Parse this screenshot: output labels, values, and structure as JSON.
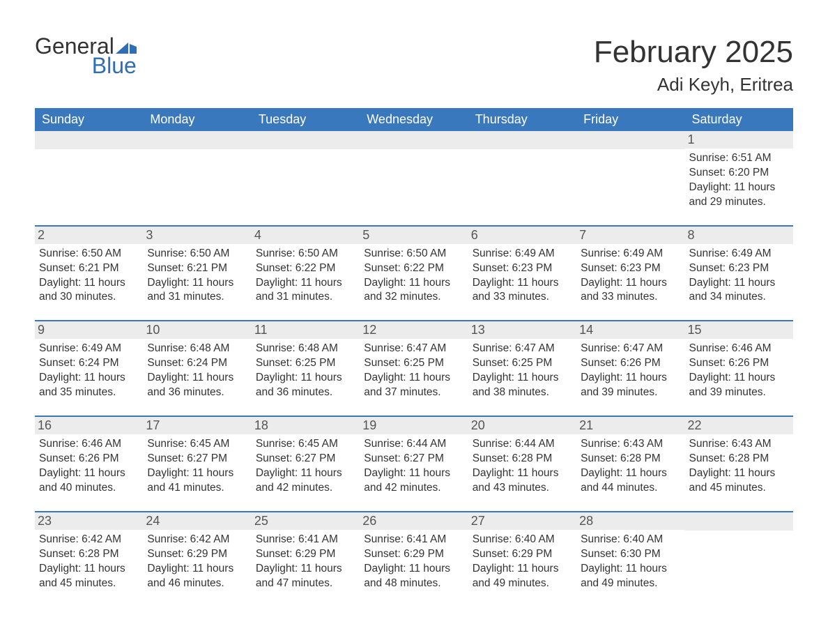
{
  "logo": {
    "text1": "General",
    "text2": "Blue",
    "icon_color": "#2f6eb5"
  },
  "title": "February 2025",
  "location": "Adi Keyh, Eritrea",
  "colors": {
    "header_bg": "#3a78bd",
    "header_text": "#ffffff",
    "daynum_bg": "#ececec",
    "border": "#3a78bd",
    "text": "#333333",
    "logo_accent": "#2f6eb5",
    "background": "#ffffff"
  },
  "typography": {
    "title_fontsize": 44,
    "location_fontsize": 26,
    "header_fontsize": 18,
    "daynum_fontsize": 18,
    "body_fontsize": 15.5
  },
  "day_names": [
    "Sunday",
    "Monday",
    "Tuesday",
    "Wednesday",
    "Thursday",
    "Friday",
    "Saturday"
  ],
  "labels": {
    "sunrise": "Sunrise:",
    "sunset": "Sunset:",
    "daylight": "Daylight:"
  },
  "weeks": [
    [
      null,
      null,
      null,
      null,
      null,
      null,
      {
        "d": 1,
        "sunrise": "6:51 AM",
        "sunset": "6:20 PM",
        "daylight": "11 hours and 29 minutes."
      }
    ],
    [
      {
        "d": 2,
        "sunrise": "6:50 AM",
        "sunset": "6:21 PM",
        "daylight": "11 hours and 30 minutes."
      },
      {
        "d": 3,
        "sunrise": "6:50 AM",
        "sunset": "6:21 PM",
        "daylight": "11 hours and 31 minutes."
      },
      {
        "d": 4,
        "sunrise": "6:50 AM",
        "sunset": "6:22 PM",
        "daylight": "11 hours and 31 minutes."
      },
      {
        "d": 5,
        "sunrise": "6:50 AM",
        "sunset": "6:22 PM",
        "daylight": "11 hours and 32 minutes."
      },
      {
        "d": 6,
        "sunrise": "6:49 AM",
        "sunset": "6:23 PM",
        "daylight": "11 hours and 33 minutes."
      },
      {
        "d": 7,
        "sunrise": "6:49 AM",
        "sunset": "6:23 PM",
        "daylight": "11 hours and 33 minutes."
      },
      {
        "d": 8,
        "sunrise": "6:49 AM",
        "sunset": "6:23 PM",
        "daylight": "11 hours and 34 minutes."
      }
    ],
    [
      {
        "d": 9,
        "sunrise": "6:49 AM",
        "sunset": "6:24 PM",
        "daylight": "11 hours and 35 minutes."
      },
      {
        "d": 10,
        "sunrise": "6:48 AM",
        "sunset": "6:24 PM",
        "daylight": "11 hours and 36 minutes."
      },
      {
        "d": 11,
        "sunrise": "6:48 AM",
        "sunset": "6:25 PM",
        "daylight": "11 hours and 36 minutes."
      },
      {
        "d": 12,
        "sunrise": "6:47 AM",
        "sunset": "6:25 PM",
        "daylight": "11 hours and 37 minutes."
      },
      {
        "d": 13,
        "sunrise": "6:47 AM",
        "sunset": "6:25 PM",
        "daylight": "11 hours and 38 minutes."
      },
      {
        "d": 14,
        "sunrise": "6:47 AM",
        "sunset": "6:26 PM",
        "daylight": "11 hours and 39 minutes."
      },
      {
        "d": 15,
        "sunrise": "6:46 AM",
        "sunset": "6:26 PM",
        "daylight": "11 hours and 39 minutes."
      }
    ],
    [
      {
        "d": 16,
        "sunrise": "6:46 AM",
        "sunset": "6:26 PM",
        "daylight": "11 hours and 40 minutes."
      },
      {
        "d": 17,
        "sunrise": "6:45 AM",
        "sunset": "6:27 PM",
        "daylight": "11 hours and 41 minutes."
      },
      {
        "d": 18,
        "sunrise": "6:45 AM",
        "sunset": "6:27 PM",
        "daylight": "11 hours and 42 minutes."
      },
      {
        "d": 19,
        "sunrise": "6:44 AM",
        "sunset": "6:27 PM",
        "daylight": "11 hours and 42 minutes."
      },
      {
        "d": 20,
        "sunrise": "6:44 AM",
        "sunset": "6:28 PM",
        "daylight": "11 hours and 43 minutes."
      },
      {
        "d": 21,
        "sunrise": "6:43 AM",
        "sunset": "6:28 PM",
        "daylight": "11 hours and 44 minutes."
      },
      {
        "d": 22,
        "sunrise": "6:43 AM",
        "sunset": "6:28 PM",
        "daylight": "11 hours and 45 minutes."
      }
    ],
    [
      {
        "d": 23,
        "sunrise": "6:42 AM",
        "sunset": "6:28 PM",
        "daylight": "11 hours and 45 minutes."
      },
      {
        "d": 24,
        "sunrise": "6:42 AM",
        "sunset": "6:29 PM",
        "daylight": "11 hours and 46 minutes."
      },
      {
        "d": 25,
        "sunrise": "6:41 AM",
        "sunset": "6:29 PM",
        "daylight": "11 hours and 47 minutes."
      },
      {
        "d": 26,
        "sunrise": "6:41 AM",
        "sunset": "6:29 PM",
        "daylight": "11 hours and 48 minutes."
      },
      {
        "d": 27,
        "sunrise": "6:40 AM",
        "sunset": "6:29 PM",
        "daylight": "11 hours and 49 minutes."
      },
      {
        "d": 28,
        "sunrise": "6:40 AM",
        "sunset": "6:30 PM",
        "daylight": "11 hours and 49 minutes."
      },
      null
    ]
  ]
}
